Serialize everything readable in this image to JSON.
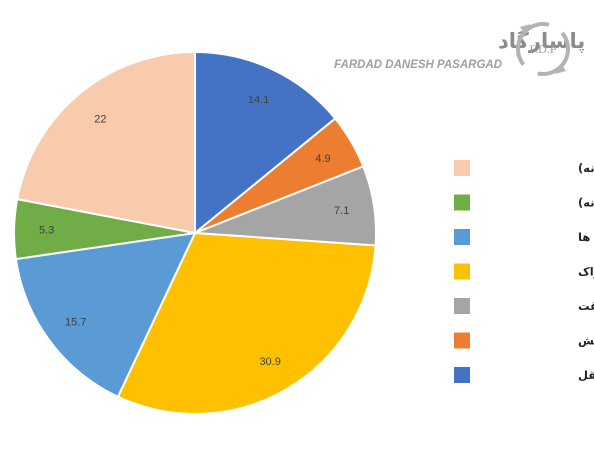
{
  "brand": {
    "name_fa": "فرداد دانش پاسارگاد",
    "name_en": "FARDAD DANESH PASARGAD",
    "logo_text": "F.D.P"
  },
  "chart_data": {
    "type": "pie",
    "title": "",
    "slices": [
      {
        "label": "حمل و نقل",
        "value": 14.1,
        "color": "#4472C4"
      },
      {
        "label": "لباس و کفش",
        "value": 4.9,
        "color": "#ED7D31"
      },
      {
        "label": "ورزش و اوقات فراغت",
        "value": 7.1,
        "color": "#A5A5A5"
      },
      {
        "label": "خورد و خوراک",
        "value": 30.9,
        "color": "#FFC000"
      },
      {
        "label": "رستوران ها",
        "value": 15.7,
        "color": "#5B9BD5"
      },
      {
        "label": "قبوض خدماتی (ماهانه)",
        "value": 5.3,
        "color": "#70AD47"
      },
      {
        "label": "مسکن (ماهانه)",
        "value": 22,
        "color": "#F8CBAD"
      }
    ],
    "legend_order": [
      6,
      5,
      4,
      3,
      2,
      1,
      0
    ],
    "legend_position": "right"
  }
}
